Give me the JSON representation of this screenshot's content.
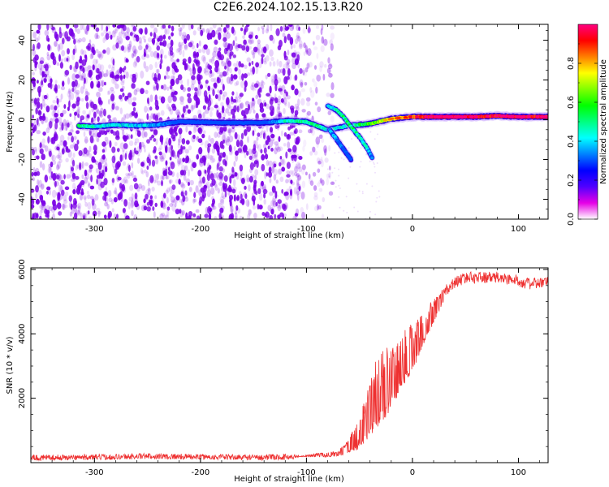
{
  "title": "C2E6.2024.102.15.13.R20",
  "colors": {
    "spectrogram_base": "#7a00e6",
    "snr_line": "#ee3030",
    "axis": "#000000"
  },
  "colorbar": {
    "label": "Normalized spectral amplitude",
    "ticks": [
      "0.0",
      "0.2",
      "0.4",
      "0.6",
      "0.8"
    ],
    "range": [
      0,
      1
    ],
    "colors": [
      "#ffffff",
      "#e600e6",
      "#5000ff",
      "#0000ff",
      "#0080ff",
      "#00ffff",
      "#00ff80",
      "#00ff00",
      "#80ff00",
      "#ffff00",
      "#ff8000",
      "#ff0000",
      "#ff0080"
    ]
  },
  "chart_data": [
    {
      "type": "heatmap",
      "xlabel": "Height of straight line (km)",
      "ylabel": "Frequency (Hz)",
      "xlim": [
        -360,
        128
      ],
      "ylim": [
        -50,
        48
      ],
      "xticks": [
        -300,
        -200,
        -100,
        0,
        100
      ],
      "yticks": [
        -40,
        -20,
        0,
        20,
        40
      ],
      "xtick_labels": [
        "-300",
        "-200",
        "-100",
        "0",
        "100"
      ],
      "ytick_labels": [
        "-40",
        "-20",
        "0",
        "20",
        "40"
      ],
      "noise_region": [
        -360,
        -75
      ],
      "main_trace": {
        "x": [
          -315,
          -300,
          -280,
          -260,
          -240,
          -220,
          -180,
          -140,
          -120,
          -100,
          -90,
          -80,
          -60,
          -40,
          -20,
          0,
          20,
          40,
          60,
          80,
          100,
          128
        ],
        "y": [
          -3,
          -3.5,
          -2.5,
          -3,
          -2.5,
          -1,
          -1.5,
          -1.5,
          -0.5,
          -1,
          -3,
          -5,
          -3,
          -2,
          0.5,
          1.5,
          1.5,
          1.5,
          1.5,
          2,
          1.5,
          1.5
        ],
        "amplitude": [
          0.5,
          0.45,
          0.4,
          0.4,
          0.35,
          0.2,
          0.15,
          0.2,
          0.45,
          0.5,
          0.5,
          0.4,
          0.45,
          0.6,
          0.75,
          0.85,
          0.95,
          0.95,
          0.95,
          0.9,
          0.95,
          0.9
        ]
      },
      "branches": [
        {
          "x": [
            -80,
            -72,
            -66,
            -60,
            -54,
            -48,
            -42,
            -38
          ],
          "y": [
            7,
            5,
            2,
            -2,
            -6,
            -10,
            -15,
            -19
          ],
          "amplitude": [
            0.4,
            0.45,
            0.5,
            0.5,
            0.5,
            0.45,
            0.4,
            0.35
          ]
        },
        {
          "x": [
            -78,
            -74,
            -70,
            -66,
            -62,
            -58
          ],
          "y": [
            -5,
            -8,
            -11,
            -14,
            -17,
            -20
          ],
          "amplitude": [
            0.35,
            0.35,
            0.3,
            0.3,
            0.25,
            0.2
          ]
        }
      ]
    },
    {
      "type": "line",
      "xlabel": "Height of straight line (km)",
      "ylabel": "SNR (10 * v/v)",
      "xlim": [
        -360,
        128
      ],
      "ylim": [
        0,
        6050
      ],
      "xticks": [
        -300,
        -200,
        -100,
        0,
        100
      ],
      "yticks": [
        2000,
        4000,
        6000
      ],
      "xtick_labels": [
        "-300",
        "-200",
        "-100",
        "0",
        "100"
      ],
      "ytick_labels": [
        "2000",
        "4000",
        "6000"
      ],
      "series": [
        {
          "x": [
            -360,
            -300,
            -250,
            -200,
            -150,
            -110,
            -90,
            -70,
            -60,
            -50,
            -45,
            -40,
            -35,
            -30,
            -25,
            -20,
            -15,
            -10,
            -5,
            0,
            5,
            10,
            20,
            30,
            40,
            50,
            60,
            80,
            100,
            110,
            128
          ],
          "y": [
            150,
            170,
            200,
            180,
            160,
            180,
            250,
            300,
            600,
            1000,
            1500,
            2000,
            2400,
            2600,
            2800,
            3100,
            3300,
            3500,
            3600,
            3800,
            4000,
            4300,
            4800,
            5300,
            5600,
            5750,
            5750,
            5750,
            5650,
            5550,
            5600
          ],
          "spike_fraction": [
            0,
            0,
            0,
            0,
            0,
            0,
            0.3,
            0.4,
            0.5,
            0.6,
            0.6,
            0.6,
            0.6,
            0.55,
            0.5,
            0.45,
            0.4,
            0.35,
            0.3,
            0.25,
            0.2,
            0.15,
            0.1,
            0.05,
            0.03,
            0.02,
            0.02,
            0.02,
            0.02,
            0.02,
            0.02
          ]
        }
      ]
    }
  ]
}
